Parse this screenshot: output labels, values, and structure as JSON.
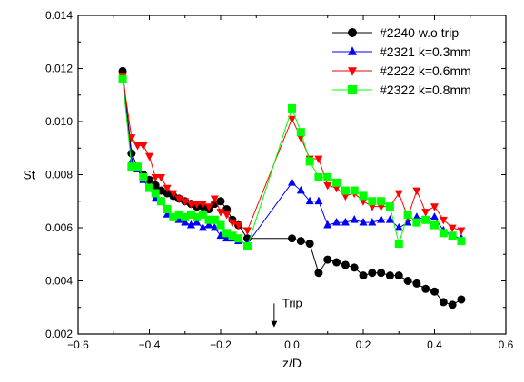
{
  "chart_data": {
    "type": "scatter",
    "title": "",
    "xlabel": "z/D",
    "ylabel": "St",
    "xlim": [
      -0.6,
      0.6
    ],
    "ylim": [
      0.002,
      0.014
    ],
    "xticks": [
      -0.6,
      -0.4,
      -0.2,
      0.0,
      0.2,
      0.4,
      0.6
    ],
    "yticks": [
      0.002,
      0.004,
      0.006,
      0.008,
      0.01,
      0.012,
      0.014
    ],
    "xtick_labels": [
      "−0.6",
      "−0.4",
      "−0.2",
      "0.0",
      "0.2",
      "0.4",
      "0.6"
    ],
    "ytick_labels": [
      "0.002",
      "0.004",
      "0.006",
      "0.008",
      "0.010",
      "0.012",
      "0.014"
    ],
    "grid": false,
    "legend_position": "top-right",
    "annotation": {
      "text": "Trip",
      "x": -0.05,
      "y_from": 0.00315,
      "y_to": 0.00225
    },
    "series": [
      {
        "name": "#2240 w.o trip",
        "color": "#000000",
        "marker": "circle",
        "x": [
          -0.475,
          -0.45,
          -0.433,
          -0.417,
          -0.4,
          -0.383,
          -0.367,
          -0.35,
          -0.333,
          -0.317,
          -0.3,
          -0.283,
          -0.267,
          -0.25,
          -0.233,
          -0.217,
          -0.2,
          -0.183,
          -0.167,
          -0.15,
          -0.125,
          0.0,
          0.025,
          0.05,
          0.075,
          0.1,
          0.125,
          0.15,
          0.175,
          0.2,
          0.225,
          0.25,
          0.275,
          0.3,
          0.325,
          0.35,
          0.375,
          0.4,
          0.425,
          0.45,
          0.475
        ],
        "y": [
          0.0119,
          0.0088,
          0.0083,
          0.008,
          0.0078,
          0.0076,
          0.0074,
          0.0073,
          0.0072,
          0.0071,
          0.007,
          0.0069,
          0.0068,
          0.0068,
          0.0067,
          0.0069,
          0.007,
          0.0067,
          0.0063,
          0.0061,
          0.0056,
          0.0056,
          0.0055,
          0.0054,
          0.0043,
          0.0048,
          0.0047,
          0.0046,
          0.0045,
          0.0042,
          0.0043,
          0.0043,
          0.0042,
          0.0042,
          0.004,
          0.0039,
          0.0037,
          0.0036,
          0.0032,
          0.0031,
          0.0033
        ]
      },
      {
        "name": "#2321 k=0.3mm",
        "color": "#0000ff",
        "marker": "triangle-up",
        "x": [
          -0.475,
          -0.45,
          -0.433,
          -0.417,
          -0.4,
          -0.383,
          -0.367,
          -0.35,
          -0.333,
          -0.317,
          -0.3,
          -0.283,
          -0.267,
          -0.25,
          -0.233,
          -0.217,
          -0.2,
          -0.183,
          -0.167,
          -0.15,
          -0.125,
          0.0,
          0.025,
          0.05,
          0.075,
          0.1,
          0.125,
          0.15,
          0.175,
          0.2,
          0.225,
          0.25,
          0.275,
          0.3,
          0.325,
          0.35,
          0.375,
          0.4,
          0.425,
          0.45,
          0.475
        ],
        "y": [
          0.0116,
          0.0085,
          0.0082,
          0.0078,
          0.0075,
          0.0071,
          0.007,
          0.0065,
          0.0064,
          0.0063,
          0.0062,
          0.0061,
          0.0062,
          0.006,
          0.0061,
          0.006,
          0.0057,
          0.0056,
          0.0056,
          0.0055,
          0.0054,
          0.0077,
          0.0074,
          0.007,
          0.007,
          0.0061,
          0.0062,
          0.0062,
          0.0063,
          0.0062,
          0.0062,
          0.0063,
          0.0063,
          0.006,
          0.0062,
          0.0064,
          0.0063,
          0.0064,
          0.0059,
          0.0057,
          0.0056
        ]
      },
      {
        "name": "#2222 k=0.6mm",
        "color": "#ff0000",
        "marker": "triangle-down",
        "x": [
          -0.475,
          -0.45,
          -0.433,
          -0.417,
          -0.4,
          -0.383,
          -0.367,
          -0.35,
          -0.333,
          -0.317,
          -0.3,
          -0.283,
          -0.267,
          -0.25,
          -0.233,
          -0.217,
          -0.2,
          -0.183,
          -0.167,
          -0.15,
          -0.125,
          0.0,
          0.025,
          0.05,
          0.075,
          0.1,
          0.125,
          0.15,
          0.175,
          0.2,
          0.225,
          0.25,
          0.275,
          0.3,
          0.325,
          0.35,
          0.375,
          0.4,
          0.425,
          0.45,
          0.475
        ],
        "y": [
          0.0117,
          0.0094,
          0.0091,
          0.0091,
          0.0087,
          0.0079,
          0.0079,
          0.0075,
          0.0073,
          0.0071,
          0.007,
          0.0069,
          0.0069,
          0.0069,
          0.0068,
          0.0071,
          0.0066,
          0.0065,
          0.0062,
          0.0061,
          0.0059,
          0.0101,
          0.0094,
          0.0086,
          0.0086,
          0.0076,
          0.0075,
          0.0072,
          0.0073,
          0.007,
          0.0068,
          0.0068,
          0.0068,
          0.0073,
          0.0064,
          0.0074,
          0.0066,
          0.0068,
          0.0063,
          0.006,
          0.0059
        ]
      },
      {
        "name": "#2322 k=0.8mm",
        "color": "#00ff00",
        "marker": "square",
        "x": [
          -0.475,
          -0.45,
          -0.433,
          -0.417,
          -0.4,
          -0.383,
          -0.367,
          -0.35,
          -0.333,
          -0.317,
          -0.3,
          -0.283,
          -0.267,
          -0.25,
          -0.233,
          -0.217,
          -0.2,
          -0.183,
          -0.167,
          -0.15,
          -0.125,
          0.0,
          0.025,
          0.05,
          0.075,
          0.1,
          0.125,
          0.15,
          0.175,
          0.2,
          0.225,
          0.25,
          0.275,
          0.3,
          0.325,
          0.35,
          0.375,
          0.4,
          0.425,
          0.45,
          0.475
        ],
        "y": [
          0.0116,
          0.0083,
          0.0083,
          0.0079,
          0.0075,
          0.0073,
          0.007,
          0.0067,
          0.0064,
          0.0065,
          0.0064,
          0.0065,
          0.0064,
          0.0065,
          0.0063,
          0.0063,
          0.0061,
          0.0058,
          0.0057,
          0.0056,
          0.0053,
          0.0105,
          0.0096,
          0.0085,
          0.0079,
          0.0079,
          0.0077,
          0.0074,
          0.0074,
          0.0072,
          0.007,
          0.007,
          0.0068,
          0.0054,
          0.0065,
          0.0062,
          0.0063,
          0.0061,
          0.0058,
          0.0057,
          0.0055
        ]
      }
    ]
  }
}
